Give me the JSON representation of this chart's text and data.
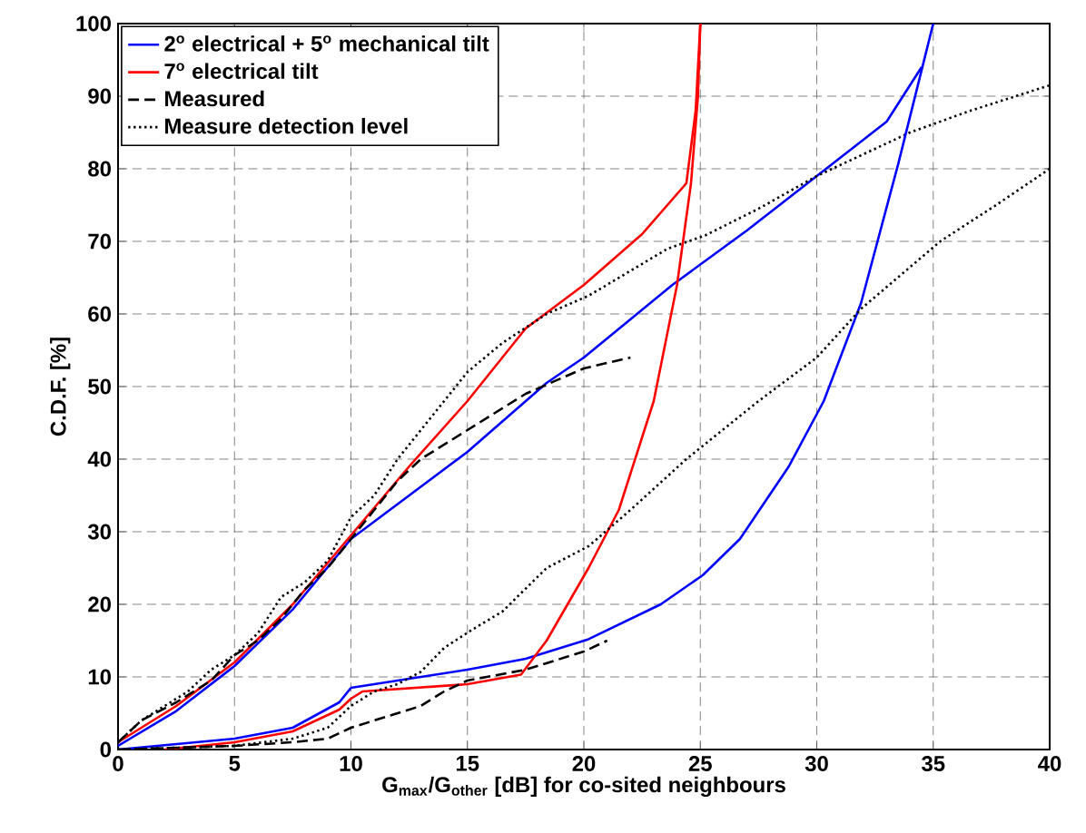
{
  "chart_data": {
    "type": "line",
    "xlabel": "G$_{max}$/G$_{other}$ [dB] for co-sited neighbours",
    "ylabel": "C.D.F. [%]",
    "xlim": [
      0,
      40
    ],
    "xticks": [
      0,
      5,
      10,
      15,
      20,
      25,
      30,
      35,
      40
    ],
    "ylim": [
      0,
      100
    ],
    "yticks": [
      0,
      10,
      20,
      30,
      40,
      50,
      60,
      70,
      80,
      90,
      100
    ],
    "grid": true,
    "legend": "top left",
    "series": [
      {
        "name": "2$^{o}$ electrical + 5$^{o}$ mechanical tilt",
        "color": "#0000ff",
        "line_style": "solid",
        "x": [
          0,
          2.5,
          5,
          7.5,
          10,
          12.5,
          15,
          18.4,
          20,
          23.8,
          27,
          30,
          33,
          34.5
        ],
        "values": [
          0.5,
          5.3,
          11.5,
          19.3,
          29,
          35,
          41,
          50.5,
          54,
          64,
          71.5,
          79,
          86.5,
          94
        ]
      },
      {
        "name": "7$^{o}$ electrical tilt",
        "color": "#ff0000",
        "line_style": "solid",
        "x": [
          0,
          2.5,
          5,
          7.5,
          10,
          12.5,
          15,
          17.5,
          20,
          22.5,
          24.4,
          24.8,
          25
        ],
        "values": [
          1,
          6,
          12,
          20,
          29.5,
          39,
          48,
          58,
          64,
          71,
          78,
          88,
          100
        ]
      },
      {
        "name": "Measured",
        "color": "#000000",
        "line_style": "dashed",
        "x": [
          0,
          1,
          2.5,
          4,
          5,
          6,
          7,
          8,
          9,
          10,
          11,
          12,
          13,
          15,
          17.5,
          20,
          22
        ],
        "values": [
          1,
          4,
          6.5,
          9.5,
          13,
          15,
          18,
          22,
          25,
          29,
          33,
          37,
          40,
          44,
          49,
          52.5,
          54
        ]
      },
      {
        "name": "Measure detection level",
        "color": "#000000",
        "line_style": "dotted",
        "x": [
          0,
          1,
          2,
          3,
          4,
          5,
          6,
          7,
          8,
          9,
          10,
          11,
          12,
          13,
          14,
          15,
          16.5,
          18.4,
          20.2,
          23.6,
          25.2,
          27.5,
          30,
          34,
          36.6,
          40
        ],
        "values": [
          1,
          4,
          6,
          8,
          11,
          13,
          16,
          21,
          23,
          26,
          32,
          35,
          40,
          44,
          48,
          52,
          56,
          60,
          62.5,
          69,
          70.8,
          74.5,
          79,
          85,
          88,
          91.5
        ]
      },
      {
        "color": "#0000ff",
        "line_style": "solid",
        "x": [
          0,
          5,
          7.5,
          9.5,
          10,
          11,
          15,
          17.5,
          20.2,
          23.3,
          25.1,
          26.7,
          28.8,
          30.3,
          31.9,
          33.5,
          35
        ],
        "values": [
          0,
          1.5,
          3,
          6.5,
          8.5,
          9,
          11,
          12.5,
          15.2,
          20,
          24,
          29,
          39,
          48,
          61.5,
          80.7,
          100
        ]
      },
      {
        "color": "#ff0000",
        "line_style": "solid",
        "x": [
          2,
          5,
          7.5,
          9.5,
          10,
          10.5,
          15,
          17.3,
          18.4,
          20.2,
          21.5,
          23,
          24,
          24.6,
          24.9,
          25
        ],
        "values": [
          0,
          1,
          2.5,
          5.5,
          7,
          8,
          9,
          10.3,
          15,
          25,
          33,
          48,
          64,
          78,
          90,
          100
        ]
      },
      {
        "color": "#000000",
        "line_style": "dashed",
        "x": [
          0,
          5,
          7.5,
          9,
          10,
          12,
          13,
          14,
          15,
          17.5,
          20,
          21
        ],
        "values": [
          0,
          0.5,
          1,
          1.5,
          3,
          5,
          6,
          8,
          9.5,
          11,
          13.5,
          15
        ]
      },
      {
        "color": "#000000",
        "line_style": "dotted",
        "x": [
          0,
          5,
          7.5,
          9,
          10,
          11,
          12,
          13,
          14,
          15.2,
          16.5,
          18.4,
          20.2,
          22,
          24.4,
          27.5,
          30,
          31.9,
          35.3,
          37.7,
          40
        ],
        "values": [
          0,
          0.5,
          1.5,
          3,
          6,
          8,
          9,
          10.7,
          14,
          16.5,
          19,
          25,
          28,
          33,
          40,
          48,
          54,
          60.7,
          70,
          75,
          80
        ]
      }
    ]
  }
}
